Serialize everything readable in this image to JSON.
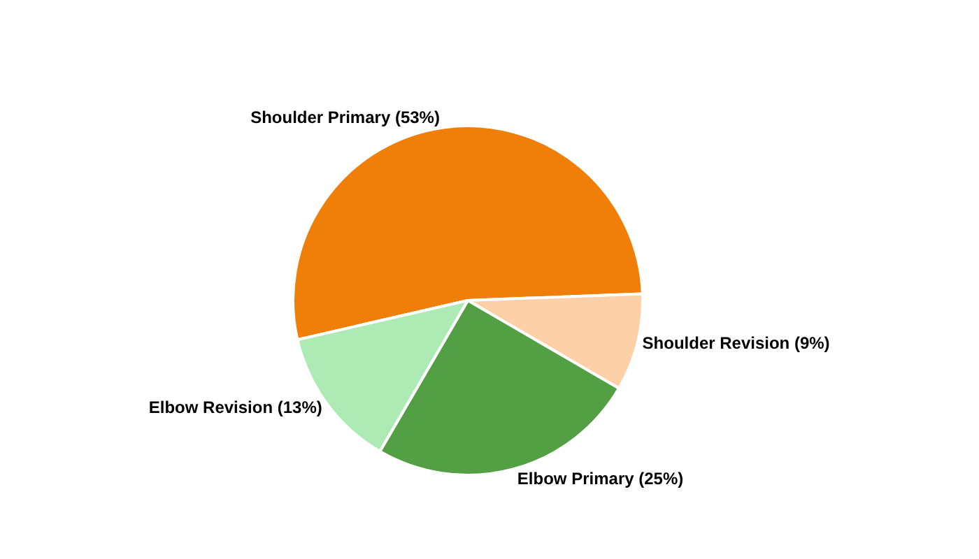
{
  "chart_data": {
    "type": "pie",
    "categories": [
      "Shoulder Primary",
      "Shoulder Revision",
      "Elbow Primary",
      "Elbow Revision"
    ],
    "values": [
      53,
      9,
      25,
      13
    ],
    "value_labels": [
      "(53%)",
      "(9%)",
      "(25%)",
      "(13%)"
    ],
    "colors": [
      "#f07f09",
      "#fdd0a8",
      "#53a044",
      "#aeeab4"
    ],
    "legend": false
  }
}
